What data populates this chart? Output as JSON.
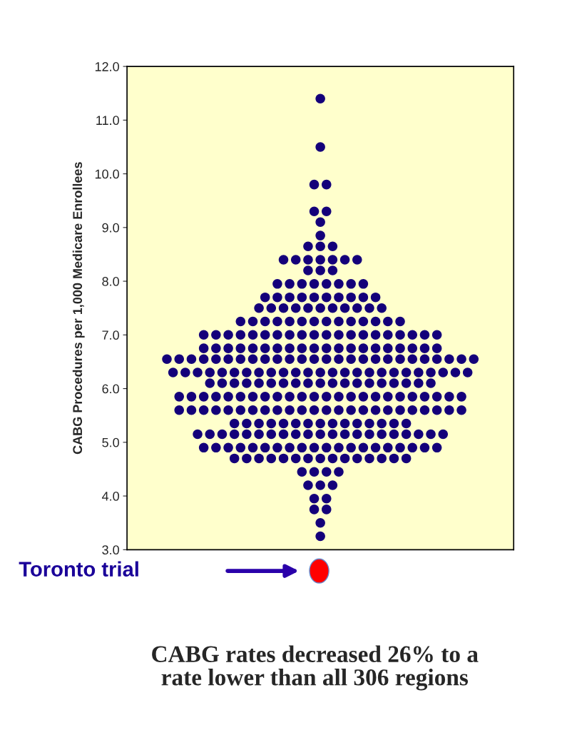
{
  "chart_data": {
    "type": "scatter",
    "ylabel": "CABG Procedures per 1,000 Medicare Enrollees",
    "ylim": [
      3,
      12
    ],
    "yticks": [
      {
        "value": 3,
        "label": "3.0"
      },
      {
        "value": 4,
        "label": "4.0"
      },
      {
        "value": 5,
        "label": "5.0"
      },
      {
        "value": 6,
        "label": "6.0"
      },
      {
        "value": 7,
        "label": "7.0"
      },
      {
        "value": 8,
        "label": "8.0"
      },
      {
        "value": 9,
        "label": "9.0"
      },
      {
        "value": 10,
        "label": "10.0"
      },
      {
        "value": 11,
        "label": "11.0"
      },
      {
        "value": 12,
        "label": "12.0"
      }
    ],
    "categories": [
      null,
      null,
      null,
      null,
      null,
      null,
      null,
      null,
      null,
      null,
      null,
      null,
      null,
      null,
      null,
      null,
      null,
      null,
      null,
      null,
      null,
      null,
      null,
      null,
      null,
      null,
      null,
      null,
      null,
      null,
      null,
      null,
      null,
      null,
      null,
      null,
      null,
      null,
      null,
      null,
      null,
      null,
      null,
      null,
      null,
      null,
      null,
      null,
      null,
      null,
      null,
      null,
      null,
      null,
      null,
      null,
      null,
      null,
      null,
      null,
      null,
      null,
      null
    ],
    "grid": false,
    "marker": "circle",
    "annotations": [
      "Toronto trial",
      "CABG rates decreased 26% to a\nrate lower than all 306 regions"
    ],
    "series": [
      {
        "color": "#14007a",
        "values": [
          null,
          null,
          null,
          null,
          null,
          null,
          null,
          null,
          null,
          null,
          null,
          null,
          null,
          null,
          null,
          null,
          null,
          null,
          null,
          null,
          null,
          null,
          null,
          null,
          null,
          null,
          null,
          null,
          null,
          null,
          null,
          11.4,
          null,
          null,
          null,
          null,
          null,
          null,
          null,
          null,
          null,
          null,
          null,
          null,
          null,
          null,
          null,
          null,
          null,
          null,
          null,
          null,
          null,
          null,
          null,
          null,
          null,
          null,
          null,
          null,
          null,
          null,
          null
        ]
      },
      {
        "color": "#14007a",
        "values": [
          null,
          null,
          null,
          null,
          null,
          null,
          null,
          null,
          null,
          null,
          null,
          null,
          null,
          null,
          null,
          null,
          null,
          null,
          null,
          null,
          null,
          null,
          null,
          null,
          null,
          null,
          null,
          null,
          null,
          null,
          null,
          10.5,
          null,
          null,
          null,
          null,
          null,
          null,
          null,
          null,
          null,
          null,
          null,
          null,
          null,
          null,
          null,
          null,
          null,
          null,
          null,
          null,
          null,
          null,
          null,
          null,
          null,
          null,
          null,
          null,
          null,
          null,
          null
        ]
      },
      {
        "color": "#14007a",
        "values": [
          null,
          null,
          null,
          null,
          null,
          null,
          null,
          null,
          null,
          null,
          null,
          null,
          null,
          null,
          null,
          null,
          null,
          null,
          null,
          null,
          null,
          null,
          null,
          null,
          null,
          null,
          null,
          null,
          null,
          null,
          9.8,
          null,
          9.8,
          null,
          null,
          null,
          null,
          null,
          null,
          null,
          null,
          null,
          null,
          null,
          null,
          null,
          null,
          null,
          null,
          null,
          null,
          null,
          null,
          null,
          null,
          null,
          null,
          null,
          null,
          null,
          null,
          null,
          null
        ]
      },
      {
        "color": "#14007a",
        "values": [
          null,
          null,
          null,
          null,
          null,
          null,
          null,
          null,
          null,
          null,
          null,
          null,
          null,
          null,
          null,
          null,
          null,
          null,
          null,
          null,
          null,
          null,
          null,
          null,
          null,
          null,
          null,
          null,
          null,
          null,
          9.3,
          null,
          9.3,
          null,
          null,
          null,
          null,
          null,
          null,
          null,
          null,
          null,
          null,
          null,
          null,
          null,
          null,
          null,
          null,
          null,
          null,
          null,
          null,
          null,
          null,
          null,
          null,
          null,
          null,
          null,
          null,
          null,
          null
        ]
      },
      {
        "color": "#14007a",
        "values": [
          null,
          null,
          null,
          null,
          null,
          null,
          null,
          null,
          null,
          null,
          null,
          null,
          null,
          null,
          null,
          null,
          null,
          null,
          null,
          null,
          null,
          null,
          null,
          null,
          null,
          null,
          null,
          null,
          null,
          null,
          null,
          9.1,
          null,
          null,
          null,
          null,
          null,
          null,
          null,
          null,
          null,
          null,
          null,
          null,
          null,
          null,
          null,
          null,
          null,
          null,
          null,
          null,
          null,
          null,
          null,
          null,
          null,
          null,
          null,
          null,
          null,
          null,
          null
        ]
      },
      {
        "color": "#14007a",
        "values": [
          null,
          null,
          null,
          null,
          null,
          null,
          null,
          null,
          null,
          null,
          null,
          null,
          null,
          null,
          null,
          null,
          null,
          null,
          null,
          null,
          null,
          null,
          null,
          null,
          null,
          null,
          null,
          null,
          null,
          null,
          null,
          8.85,
          null,
          null,
          null,
          null,
          null,
          null,
          null,
          null,
          null,
          null,
          null,
          null,
          null,
          null,
          null,
          null,
          null,
          null,
          null,
          null,
          null,
          null,
          null,
          null,
          null,
          null,
          null,
          null,
          null,
          null,
          null
        ]
      },
      {
        "color": "#14007a",
        "values": [
          null,
          null,
          null,
          null,
          null,
          null,
          null,
          null,
          null,
          null,
          null,
          null,
          null,
          null,
          null,
          null,
          null,
          null,
          null,
          null,
          null,
          null,
          null,
          null,
          null,
          null,
          null,
          null,
          null,
          8.65,
          null,
          8.65,
          null,
          8.65,
          null,
          null,
          null,
          null,
          null,
          null,
          null,
          null,
          null,
          null,
          null,
          null,
          null,
          null,
          null,
          null,
          null,
          null,
          null,
          null,
          null,
          null,
          null,
          null,
          null,
          null,
          null,
          null,
          null
        ]
      },
      {
        "color": "#14007a",
        "values": [
          null,
          null,
          null,
          null,
          null,
          null,
          null,
          null,
          null,
          null,
          null,
          null,
          null,
          null,
          null,
          null,
          null,
          null,
          null,
          null,
          null,
          null,
          null,
          null,
          null,
          8.4,
          null,
          8.4,
          null,
          8.4,
          null,
          8.4,
          null,
          8.4,
          null,
          8.4,
          null,
          8.4,
          null,
          null,
          null,
          null,
          null,
          null,
          null,
          null,
          null,
          null,
          null,
          null,
          null,
          null,
          null,
          null,
          null,
          null,
          null,
          null,
          null,
          null,
          null,
          null,
          null
        ]
      },
      {
        "color": "#14007a",
        "values": [
          null,
          null,
          null,
          null,
          null,
          null,
          null,
          null,
          null,
          null,
          null,
          null,
          null,
          null,
          null,
          null,
          null,
          null,
          null,
          null,
          null,
          null,
          null,
          null,
          null,
          null,
          null,
          null,
          null,
          8.2,
          null,
          8.2,
          null,
          8.2,
          null,
          null,
          null,
          null,
          null,
          null,
          null,
          null,
          null,
          null,
          null,
          null,
          null,
          null,
          null,
          null,
          null,
          null,
          null,
          null,
          null,
          null,
          null,
          null,
          null,
          null,
          null,
          null,
          null
        ]
      },
      {
        "color": "#14007a",
        "values": [
          null,
          null,
          null,
          null,
          null,
          null,
          null,
          null,
          null,
          null,
          null,
          null,
          null,
          null,
          null,
          null,
          null,
          null,
          null,
          null,
          null,
          null,
          null,
          null,
          7.95,
          null,
          7.95,
          null,
          7.95,
          null,
          7.95,
          null,
          7.95,
          null,
          7.95,
          null,
          7.95,
          null,
          7.95,
          null,
          null,
          null,
          null,
          null,
          null,
          null,
          null,
          null,
          null,
          null,
          null,
          null,
          null,
          null,
          null,
          null,
          null,
          null,
          null,
          null,
          null,
          null,
          null
        ]
      },
      {
        "color": "#14007a",
        "values": [
          null,
          null,
          null,
          null,
          null,
          null,
          null,
          null,
          null,
          null,
          null,
          null,
          null,
          null,
          null,
          null,
          null,
          null,
          null,
          null,
          null,
          null,
          7.7,
          null,
          7.7,
          null,
          7.7,
          null,
          7.7,
          null,
          7.7,
          null,
          7.7,
          null,
          7.7,
          null,
          7.7,
          null,
          7.7,
          null,
          7.7,
          null,
          null,
          null,
          null,
          null,
          null,
          null,
          null,
          null,
          null,
          null,
          null,
          null,
          null,
          null,
          null,
          null,
          null,
          null,
          null,
          null,
          null
        ]
      },
      {
        "color": "#14007a",
        "values": [
          null,
          null,
          null,
          null,
          null,
          null,
          null,
          null,
          null,
          null,
          null,
          null,
          null,
          null,
          null,
          null,
          null,
          null,
          null,
          null,
          null,
          7.5,
          null,
          7.5,
          null,
          7.5,
          null,
          7.5,
          null,
          7.5,
          null,
          7.5,
          null,
          7.5,
          null,
          7.5,
          null,
          7.5,
          null,
          7.5,
          null,
          7.5,
          null,
          null,
          null,
          null,
          null,
          null,
          null,
          null,
          null,
          null,
          null,
          null,
          null,
          null,
          null,
          null,
          null,
          null,
          null,
          null,
          null
        ]
      },
      {
        "color": "#14007a",
        "values": [
          null,
          null,
          null,
          null,
          null,
          null,
          null,
          null,
          null,
          null,
          null,
          null,
          null,
          null,
          null,
          null,
          null,
          null,
          7.25,
          null,
          7.25,
          null,
          7.25,
          null,
          7.25,
          null,
          7.25,
          null,
          7.25,
          null,
          7.25,
          null,
          7.25,
          null,
          7.25,
          null,
          7.25,
          null,
          7.25,
          null,
          7.25,
          null,
          7.25,
          null,
          7.25,
          null,
          null,
          null,
          null,
          null,
          null,
          null,
          null,
          null,
          null,
          null,
          null,
          null,
          null,
          null,
          null,
          null,
          null
        ]
      },
      {
        "color": "#14007a",
        "values": [
          null,
          null,
          null,
          null,
          null,
          null,
          null,
          null,
          null,
          null,
          null,
          null,
          7.0,
          null,
          7.0,
          null,
          7.0,
          null,
          7.0,
          null,
          7.0,
          null,
          7.0,
          null,
          7.0,
          null,
          7.0,
          null,
          7.0,
          null,
          7.0,
          null,
          7.0,
          null,
          7.0,
          null,
          7.0,
          null,
          7.0,
          null,
          7.0,
          null,
          7.0,
          null,
          7.0,
          null,
          7.0,
          null,
          7.0,
          null,
          7.0,
          null,
          null,
          null,
          null,
          null,
          null,
          null,
          null,
          null,
          null,
          null,
          null
        ]
      },
      {
        "color": "#14007a",
        "values": [
          null,
          null,
          null,
          null,
          null,
          null,
          null,
          null,
          null,
          null,
          null,
          null,
          6.75,
          null,
          6.75,
          null,
          6.75,
          null,
          6.75,
          null,
          6.75,
          null,
          6.75,
          null,
          6.75,
          null,
          6.75,
          null,
          6.75,
          null,
          6.75,
          null,
          6.75,
          null,
          6.75,
          null,
          6.75,
          null,
          6.75,
          null,
          6.75,
          null,
          6.75,
          null,
          6.75,
          null,
          6.75,
          null,
          6.75,
          null,
          6.75,
          null,
          null,
          null,
          null,
          null,
          null,
          null,
          null,
          null,
          null,
          null,
          null
        ]
      },
      {
        "color": "#14007a",
        "values": [
          null,
          null,
          null,
          null,
          null,
          null,
          6.55,
          null,
          6.55,
          null,
          6.55,
          null,
          6.55,
          null,
          6.55,
          null,
          6.55,
          null,
          6.55,
          null,
          6.55,
          null,
          6.55,
          null,
          6.55,
          null,
          6.55,
          null,
          6.55,
          null,
          6.55,
          null,
          6.55,
          null,
          6.55,
          null,
          6.55,
          null,
          6.55,
          null,
          6.55,
          null,
          6.55,
          null,
          6.55,
          null,
          6.55,
          null,
          6.55,
          null,
          6.55,
          null,
          6.55,
          null,
          6.55,
          null,
          6.55,
          null,
          null,
          null,
          null,
          null,
          null
        ]
      },
      {
        "color": "#14007a",
        "values": [
          null,
          null,
          null,
          null,
          null,
          null,
          null,
          6.3,
          null,
          6.3,
          null,
          6.3,
          null,
          6.3,
          null,
          6.3,
          null,
          6.3,
          null,
          6.3,
          null,
          6.3,
          null,
          6.3,
          null,
          6.3,
          null,
          6.3,
          null,
          6.3,
          null,
          6.3,
          null,
          6.3,
          null,
          6.3,
          null,
          6.3,
          null,
          6.3,
          null,
          6.3,
          null,
          6.3,
          null,
          6.3,
          null,
          6.3,
          null,
          6.3,
          null,
          6.3,
          null,
          6.3,
          null,
          6.3,
          null,
          null,
          null,
          null,
          null,
          null,
          null
        ]
      },
      {
        "color": "#14007a",
        "values": [
          null,
          null,
          null,
          null,
          null,
          null,
          null,
          null,
          null,
          null,
          null,
          null,
          null,
          6.1,
          null,
          6.1,
          null,
          6.1,
          null,
          6.1,
          null,
          6.1,
          null,
          6.1,
          null,
          6.1,
          null,
          6.1,
          null,
          6.1,
          null,
          6.1,
          null,
          6.1,
          null,
          6.1,
          null,
          6.1,
          null,
          6.1,
          null,
          6.1,
          null,
          6.1,
          null,
          6.1,
          null,
          6.1,
          null,
          6.1,
          null,
          null,
          null,
          null,
          null,
          null,
          null,
          null,
          null,
          null,
          null,
          null,
          null
        ]
      },
      {
        "color": "#14007a",
        "values": [
          null,
          null,
          null,
          null,
          null,
          null,
          null,
          null,
          5.85,
          null,
          5.85,
          null,
          5.85,
          null,
          5.85,
          null,
          5.85,
          null,
          5.85,
          null,
          5.85,
          null,
          5.85,
          null,
          5.85,
          null,
          5.85,
          null,
          5.85,
          null,
          5.85,
          null,
          5.85,
          null,
          5.85,
          null,
          5.85,
          null,
          5.85,
          null,
          5.85,
          null,
          5.85,
          null,
          5.85,
          null,
          5.85,
          null,
          5.85,
          null,
          5.85,
          null,
          5.85,
          null,
          5.85,
          null,
          null,
          null,
          null,
          null,
          null,
          null,
          null
        ]
      },
      {
        "color": "#14007a",
        "values": [
          null,
          null,
          null,
          null,
          null,
          null,
          null,
          null,
          5.6,
          null,
          5.6,
          null,
          5.6,
          null,
          5.6,
          null,
          5.6,
          null,
          5.6,
          null,
          5.6,
          null,
          5.6,
          null,
          5.6,
          null,
          5.6,
          null,
          5.6,
          null,
          5.6,
          null,
          5.6,
          null,
          5.6,
          null,
          5.6,
          null,
          5.6,
          null,
          5.6,
          null,
          5.6,
          null,
          5.6,
          null,
          5.6,
          null,
          5.6,
          null,
          5.6,
          null,
          5.6,
          null,
          5.6,
          null,
          null,
          null,
          null,
          null,
          null,
          null,
          null
        ]
      },
      {
        "color": "#14007a",
        "values": [
          null,
          null,
          null,
          null,
          null,
          null,
          null,
          null,
          null,
          null,
          null,
          null,
          null,
          null,
          null,
          null,
          null,
          5.35,
          null,
          5.35,
          null,
          5.35,
          null,
          5.35,
          null,
          5.35,
          null,
          5.35,
          null,
          5.35,
          null,
          5.35,
          null,
          5.35,
          null,
          5.35,
          null,
          5.35,
          null,
          5.35,
          null,
          5.35,
          null,
          5.35,
          null,
          5.35,
          null,
          null,
          null,
          null,
          null,
          null,
          null,
          null,
          null,
          null,
          null,
          null,
          null,
          null,
          null,
          null,
          null
        ]
      },
      {
        "color": "#14007a",
        "values": [
          null,
          null,
          null,
          null,
          null,
          null,
          null,
          null,
          null,
          null,
          null,
          5.15,
          null,
          5.15,
          null,
          5.15,
          null,
          5.15,
          null,
          5.15,
          null,
          5.15,
          null,
          5.15,
          null,
          5.15,
          null,
          5.15,
          null,
          5.15,
          null,
          5.15,
          null,
          5.15,
          null,
          5.15,
          null,
          5.15,
          null,
          5.15,
          null,
          5.15,
          null,
          5.15,
          null,
          5.15,
          null,
          5.15,
          null,
          5.15,
          null,
          5.15,
          null,
          null,
          null,
          null,
          null,
          null,
          null,
          null,
          null,
          null,
          null
        ]
      },
      {
        "color": "#14007a",
        "values": [
          null,
          null,
          null,
          null,
          null,
          null,
          null,
          null,
          null,
          null,
          null,
          null,
          4.9,
          null,
          4.9,
          null,
          4.9,
          null,
          4.9,
          null,
          4.9,
          null,
          4.9,
          null,
          4.9,
          null,
          4.9,
          null,
          4.9,
          null,
          4.9,
          null,
          4.9,
          null,
          4.9,
          null,
          4.9,
          null,
          4.9,
          null,
          4.9,
          null,
          4.9,
          null,
          4.9,
          null,
          4.9,
          null,
          4.9,
          null,
          4.9,
          null,
          null,
          null,
          null,
          null,
          null,
          null,
          null,
          null,
          null,
          null,
          null
        ]
      },
      {
        "color": "#14007a",
        "values": [
          null,
          null,
          null,
          null,
          null,
          null,
          null,
          null,
          null,
          null,
          null,
          null,
          null,
          null,
          null,
          null,
          null,
          4.7,
          null,
          4.7,
          null,
          4.7,
          null,
          4.7,
          null,
          4.7,
          null,
          4.7,
          null,
          4.7,
          null,
          4.7,
          null,
          4.7,
          null,
          4.7,
          null,
          4.7,
          null,
          4.7,
          null,
          4.7,
          null,
          4.7,
          null,
          4.7,
          null,
          null,
          null,
          null,
          null,
          null,
          null,
          null,
          null,
          null,
          null,
          null,
          null,
          null,
          null,
          null,
          null
        ]
      },
      {
        "color": "#14007a",
        "values": [
          null,
          null,
          null,
          null,
          null,
          null,
          null,
          null,
          null,
          null,
          null,
          null,
          null,
          null,
          null,
          null,
          null,
          null,
          null,
          null,
          null,
          null,
          null,
          null,
          null,
          null,
          null,
          null,
          4.45,
          null,
          4.45,
          null,
          4.45,
          null,
          4.45,
          null,
          null,
          null,
          null,
          null,
          null,
          null,
          null,
          null,
          null,
          null,
          null,
          null,
          null,
          null,
          null,
          null,
          null,
          null,
          null,
          null,
          null,
          null,
          null,
          null,
          null,
          null,
          null
        ]
      },
      {
        "color": "#14007a",
        "values": [
          null,
          null,
          null,
          null,
          null,
          null,
          null,
          null,
          null,
          null,
          null,
          null,
          null,
          null,
          null,
          null,
          null,
          null,
          null,
          null,
          null,
          null,
          null,
          null,
          null,
          null,
          null,
          null,
          null,
          4.2,
          null,
          4.2,
          null,
          4.2,
          null,
          null,
          null,
          null,
          null,
          null,
          null,
          null,
          null,
          null,
          null,
          null,
          null,
          null,
          null,
          null,
          null,
          null,
          null,
          null,
          null,
          null,
          null,
          null,
          null,
          null,
          null,
          null,
          null
        ]
      },
      {
        "color": "#14007a",
        "values": [
          null,
          null,
          null,
          null,
          null,
          null,
          null,
          null,
          null,
          null,
          null,
          null,
          null,
          null,
          null,
          null,
          null,
          null,
          null,
          null,
          null,
          null,
          null,
          null,
          null,
          null,
          null,
          null,
          null,
          null,
          3.95,
          null,
          3.95,
          null,
          null,
          null,
          null,
          null,
          null,
          null,
          null,
          null,
          null,
          null,
          null,
          null,
          null,
          null,
          null,
          null,
          null,
          null,
          null,
          null,
          null,
          null,
          null,
          null,
          null,
          null,
          null,
          null,
          null
        ]
      },
      {
        "color": "#14007a",
        "values": [
          null,
          null,
          null,
          null,
          null,
          null,
          null,
          null,
          null,
          null,
          null,
          null,
          null,
          null,
          null,
          null,
          null,
          null,
          null,
          null,
          null,
          null,
          null,
          null,
          null,
          null,
          null,
          null,
          null,
          null,
          3.75,
          null,
          3.75,
          null,
          null,
          null,
          null,
          null,
          null,
          null,
          null,
          null,
          null,
          null,
          null,
          null,
          null,
          null,
          null,
          null,
          null,
          null,
          null,
          null,
          null,
          null,
          null,
          null,
          null,
          null,
          null,
          null,
          null
        ]
      },
      {
        "color": "#14007a",
        "values": [
          null,
          null,
          null,
          null,
          null,
          null,
          null,
          null,
          null,
          null,
          null,
          null,
          null,
          null,
          null,
          null,
          null,
          null,
          null,
          null,
          null,
          null,
          null,
          null,
          null,
          null,
          null,
          null,
          null,
          null,
          null,
          3.5,
          null,
          null,
          null,
          null,
          null,
          null,
          null,
          null,
          null,
          null,
          null,
          null,
          null,
          null,
          null,
          null,
          null,
          null,
          null,
          null,
          null,
          null,
          null,
          null,
          null,
          null,
          null,
          null,
          null,
          null,
          null
        ]
      },
      {
        "color": "#14007a",
        "values": [
          null,
          null,
          null,
          null,
          null,
          null,
          null,
          null,
          null,
          null,
          null,
          null,
          null,
          null,
          null,
          null,
          null,
          null,
          null,
          null,
          null,
          null,
          null,
          null,
          null,
          null,
          null,
          null,
          null,
          null,
          null,
          3.25,
          null,
          null,
          null,
          null,
          null,
          null,
          null,
          null,
          null,
          null,
          null,
          null,
          null,
          null,
          null,
          null,
          null,
          null,
          null,
          null,
          null,
          null,
          null,
          null,
          null,
          null,
          null,
          null,
          null,
          null,
          null
        ]
      }
    ]
  }
}
